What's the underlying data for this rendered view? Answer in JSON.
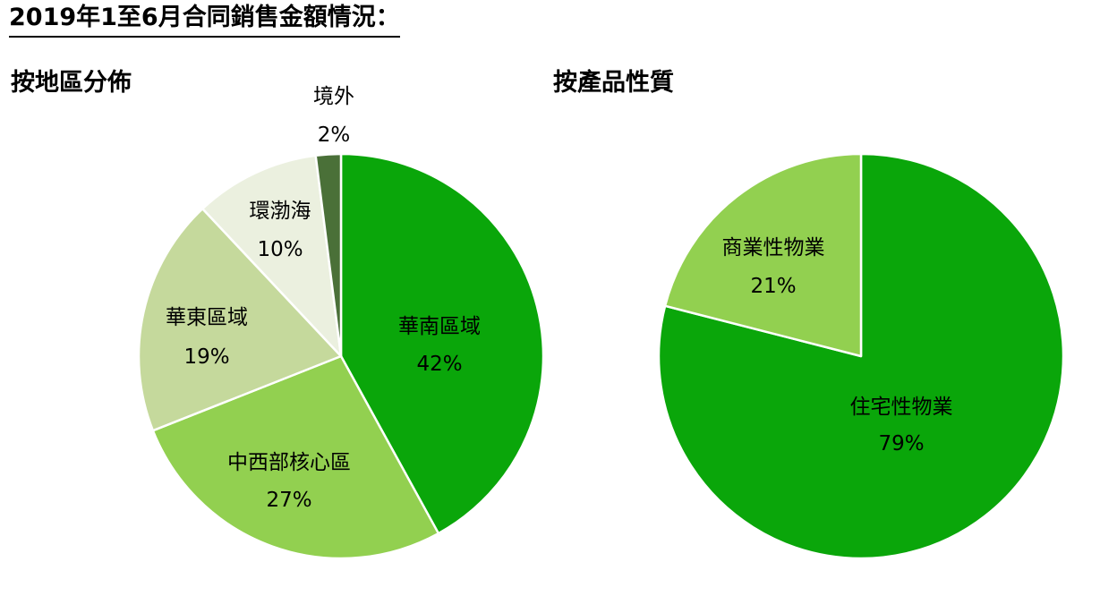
{
  "page": {
    "title": "2019年1至6月合同銷售金額情況："
  },
  "chart_data": [
    {
      "type": "pie",
      "title": "按地區分佈",
      "slices": [
        {
          "label": "華南區域",
          "value": 42,
          "display": "42%",
          "color": "#0aa60a"
        },
        {
          "label": "中西部核心區",
          "value": 27,
          "display": "27%",
          "color": "#92d050"
        },
        {
          "label": "華東區域",
          "value": 19,
          "display": "19%",
          "color": "#c5d99c"
        },
        {
          "label": "環渤海",
          "value": 10,
          "display": "10%",
          "color": "#ebf0df"
        },
        {
          "label": "境外",
          "value": 2,
          "display": "2%",
          "color": "#4a7038"
        }
      ]
    },
    {
      "type": "pie",
      "title": "按產品性質",
      "slices": [
        {
          "label": "住宅性物業",
          "value": 79,
          "display": "79%",
          "color": "#0aa60a"
        },
        {
          "label": "商業性物業",
          "value": 21,
          "display": "21%",
          "color": "#92d050"
        }
      ]
    }
  ]
}
